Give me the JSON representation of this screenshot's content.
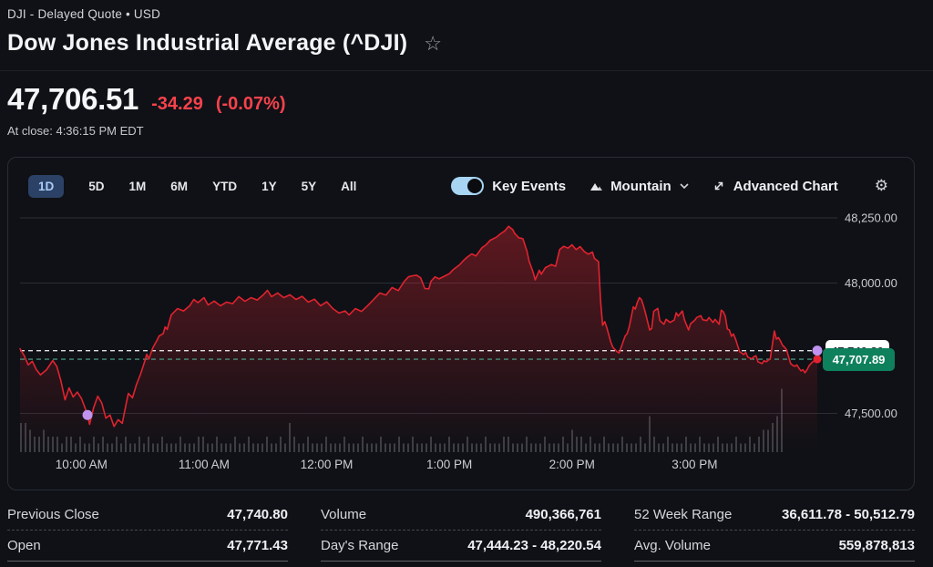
{
  "header": {
    "ticker_line": "DJI - Delayed Quote • USD",
    "title": "Dow Jones Industrial Average (^DJI)",
    "favorite_icon": "star-outline"
  },
  "quote": {
    "price": "47,706.51",
    "change": "-34.29",
    "change_pct": "(-0.07%)",
    "at_close": "At close: 4:36:15 PM EDT"
  },
  "toolbar": {
    "ranges": [
      "1D",
      "5D",
      "1M",
      "6M",
      "YTD",
      "1Y",
      "5Y",
      "All"
    ],
    "selected_range": "1D",
    "key_events_label": "Key Events",
    "key_events_on": true,
    "chart_type_label": "Mountain",
    "chart_type_icon": "mountain",
    "chart_type_chevron": "chevron-down",
    "advanced_chart_label": "Advanced Chart",
    "advanced_chart_icon": "expand-arrows",
    "settings_icon": "gear"
  },
  "colors": {
    "line_red": "#e0232f",
    "change_red": "#f8424c",
    "last_badge_green": "#0f805c",
    "prev_close_badge_white": "#ffffff",
    "prev_close_dash": "#e0e1e5",
    "last_price_dash": "#47907e",
    "key_event_purple": "#bf93ee",
    "toggle_blue": "#a7d5f2",
    "selected_range_blue": "#2c4166",
    "volume_bar_gray": "#56585f"
  },
  "chart_data": {
    "type": "area",
    "title": "Dow Jones Industrial Average 1D intraday",
    "x_axis": {
      "labels": [
        "10:00 AM",
        "11:00 AM",
        "12:00 PM",
        "1:00 PM",
        "2:00 PM",
        "3:00 PM"
      ],
      "minutes": [
        30,
        90,
        150,
        210,
        270,
        330
      ]
    },
    "y_axis": {
      "labels": [
        "48,250.00",
        "48,000.00",
        "47,500.00"
      ],
      "values": [
        48250,
        48000,
        47500
      ]
    },
    "ylim": [
      47351,
      48313
    ],
    "xlim_minutes": [
      0,
      390
    ],
    "prev_close": 47740.8,
    "prev_close_label": "47,740.80",
    "last_price": 47707.89,
    "last_label": "47,707.89",
    "key_event_dots": [
      [
        33,
        47494
      ],
      [
        390,
        47741
      ]
    ],
    "series": [
      {
        "name": "^DJI",
        "points": [
          [
            0,
            47748
          ],
          [
            2,
            47722
          ],
          [
            4,
            47686
          ],
          [
            6,
            47700
          ],
          [
            8,
            47668
          ],
          [
            10,
            47648
          ],
          [
            13,
            47668
          ],
          [
            16,
            47703
          ],
          [
            18,
            47680
          ],
          [
            20,
            47624
          ],
          [
            22,
            47552
          ],
          [
            24,
            47598
          ],
          [
            26,
            47563
          ],
          [
            28,
            47582
          ],
          [
            30,
            47558
          ],
          [
            32,
            47517
          ],
          [
            33,
            47494
          ],
          [
            34,
            47458
          ],
          [
            36,
            47522
          ],
          [
            38,
            47566
          ],
          [
            40,
            47540
          ],
          [
            42,
            47482
          ],
          [
            44,
            47494
          ],
          [
            46,
            47450
          ],
          [
            48,
            47476
          ],
          [
            50,
            47462
          ],
          [
            52,
            47541
          ],
          [
            53,
            47577
          ],
          [
            55,
            47560
          ],
          [
            57,
            47612
          ],
          [
            59,
            47652
          ],
          [
            61,
            47700
          ],
          [
            62,
            47727
          ],
          [
            63,
            47708
          ],
          [
            65,
            47752
          ],
          [
            67,
            47780
          ],
          [
            68,
            47797
          ],
          [
            70,
            47806
          ],
          [
            71,
            47832
          ],
          [
            72,
            47822
          ],
          [
            74,
            47878
          ],
          [
            77,
            47902
          ],
          [
            80,
            47893
          ],
          [
            83,
            47913
          ],
          [
            85,
            47937
          ],
          [
            87,
            47925
          ],
          [
            90,
            47944
          ],
          [
            92,
            47916
          ],
          [
            95,
            47931
          ],
          [
            98,
            47913
          ],
          [
            101,
            47927
          ],
          [
            104,
            47921
          ],
          [
            107,
            47948
          ],
          [
            110,
            47930
          ],
          [
            113,
            47944
          ],
          [
            116,
            47935
          ],
          [
            119,
            47955
          ],
          [
            121,
            47972
          ],
          [
            123,
            47948
          ],
          [
            126,
            47962
          ],
          [
            129,
            47944
          ],
          [
            132,
            47955
          ],
          [
            135,
            47937
          ],
          [
            138,
            47949
          ],
          [
            141,
            47927
          ],
          [
            144,
            47938
          ],
          [
            147,
            47913
          ],
          [
            150,
            47928
          ],
          [
            153,
            47902
          ],
          [
            156,
            47885
          ],
          [
            159,
            47893
          ],
          [
            161,
            47878
          ],
          [
            164,
            47902
          ],
          [
            167,
            47891
          ],
          [
            170,
            47913
          ],
          [
            173,
            47937
          ],
          [
            176,
            47962
          ],
          [
            179,
            47954
          ],
          [
            182,
            47983
          ],
          [
            185,
            47971
          ],
          [
            188,
            48007
          ],
          [
            190,
            48024
          ],
          [
            192,
            48028
          ],
          [
            194,
            48030
          ],
          [
            196,
            48020
          ],
          [
            198,
            47979
          ],
          [
            200,
            47978
          ],
          [
            201,
            48007
          ],
          [
            203,
            48024
          ],
          [
            205,
            48016
          ],
          [
            208,
            48028
          ],
          [
            210,
            48036
          ],
          [
            212,
            48052
          ],
          [
            215,
            48070
          ],
          [
            217,
            48087
          ],
          [
            219,
            48101
          ],
          [
            221,
            48112
          ],
          [
            223,
            48104
          ],
          [
            226,
            48136
          ],
          [
            228,
            48147
          ],
          [
            230,
            48164
          ],
          [
            233,
            48176
          ],
          [
            235,
            48189
          ],
          [
            237,
            48199
          ],
          [
            239,
            48218
          ],
          [
            241,
            48205
          ],
          [
            242,
            48190
          ],
          [
            244,
            48174
          ],
          [
            246,
            48170
          ],
          [
            248,
            48122
          ],
          [
            249,
            48084
          ],
          [
            251,
            48042
          ],
          [
            252,
            48012
          ],
          [
            254,
            48049
          ],
          [
            255,
            48034
          ],
          [
            257,
            48059
          ],
          [
            260,
            48071
          ],
          [
            262,
            48064
          ],
          [
            264,
            48129
          ],
          [
            266,
            48141
          ],
          [
            268,
            48134
          ],
          [
            270,
            48147
          ],
          [
            272,
            48128
          ],
          [
            274,
            48140
          ],
          [
            276,
            48121
          ],
          [
            278,
            48111
          ],
          [
            280,
            48119
          ],
          [
            281,
            48094
          ],
          [
            282,
            48088
          ],
          [
            283,
            48082
          ],
          [
            284,
            47930
          ],
          [
            285,
            47838
          ],
          [
            286,
            47852
          ],
          [
            287,
            47830
          ],
          [
            289,
            47773
          ],
          [
            290,
            47754
          ],
          [
            292,
            47737
          ],
          [
            293,
            47732
          ],
          [
            294,
            47752
          ],
          [
            296,
            47797
          ],
          [
            297,
            47806
          ],
          [
            298,
            47832
          ],
          [
            300,
            47909
          ],
          [
            301,
            47900
          ],
          [
            302,
            47927
          ],
          [
            303,
            47944
          ],
          [
            304,
            47936
          ],
          [
            305,
            47912
          ],
          [
            306,
            47884
          ],
          [
            308,
            47820
          ],
          [
            309,
            47826
          ],
          [
            310,
            47892
          ],
          [
            312,
            47903
          ],
          [
            313,
            47856
          ],
          [
            315,
            47842
          ],
          [
            316,
            47861
          ],
          [
            318,
            47849
          ],
          [
            320,
            47858
          ],
          [
            321,
            47886
          ],
          [
            322,
            47873
          ],
          [
            324,
            47893
          ],
          [
            325,
            47859
          ],
          [
            327,
            47820
          ],
          [
            328,
            47844
          ],
          [
            330,
            47857
          ],
          [
            331,
            47868
          ],
          [
            333,
            47875
          ],
          [
            334,
            47859
          ],
          [
            336,
            47856
          ],
          [
            337,
            47868
          ],
          [
            339,
            47849
          ],
          [
            340,
            47861
          ],
          [
            342,
            47842
          ],
          [
            343,
            47896
          ],
          [
            344,
            47890
          ],
          [
            345,
            47873
          ],
          [
            346,
            47824
          ],
          [
            347,
            47820
          ],
          [
            348,
            47796
          ],
          [
            349,
            47805
          ],
          [
            350,
            47785
          ],
          [
            351,
            47761
          ],
          [
            352,
            47737
          ],
          [
            354,
            47726
          ],
          [
            355,
            47734
          ],
          [
            356,
            47716
          ],
          [
            358,
            47709
          ],
          [
            359,
            47718
          ],
          [
            360,
            47721
          ],
          [
            361,
            47698
          ],
          [
            363,
            47691
          ],
          [
            364,
            47703
          ],
          [
            365,
            47698
          ],
          [
            367,
            47710
          ],
          [
            369,
            47816
          ],
          [
            370,
            47785
          ],
          [
            371,
            47791
          ],
          [
            372,
            47778
          ],
          [
            373,
            47761
          ],
          [
            374,
            47754
          ],
          [
            375,
            47744
          ],
          [
            376,
            47716
          ],
          [
            377,
            47691
          ],
          [
            378,
            47684
          ],
          [
            379,
            47681
          ],
          [
            380,
            47686
          ],
          [
            381,
            47674
          ],
          [
            382,
            47663
          ],
          [
            383,
            47668
          ],
          [
            384,
            47656
          ],
          [
            385,
            47668
          ],
          [
            386,
            47683
          ],
          [
            387,
            47692
          ],
          [
            388,
            47699
          ],
          [
            389,
            47704
          ],
          [
            390,
            47708
          ]
        ]
      }
    ],
    "volume_heights": "443223222122121121211212112121121112111221121112112111211214211211121112111211121112112111211121112111211122111211121112132212112111211121521121112112111211121121233459"
  },
  "stats": {
    "rows": [
      [
        {
          "label": "Previous Close",
          "value": "47,740.80"
        },
        {
          "label": "Volume",
          "value": "490,366,761"
        },
        {
          "label": "52 Week Range",
          "value": "36,611.78 - 50,512.79"
        }
      ],
      [
        {
          "label": "Open",
          "value": "47,771.43"
        },
        {
          "label": "Day's Range",
          "value": "47,444.23 - 48,220.54"
        },
        {
          "label": "Avg. Volume",
          "value": "559,878,813"
        }
      ]
    ]
  }
}
